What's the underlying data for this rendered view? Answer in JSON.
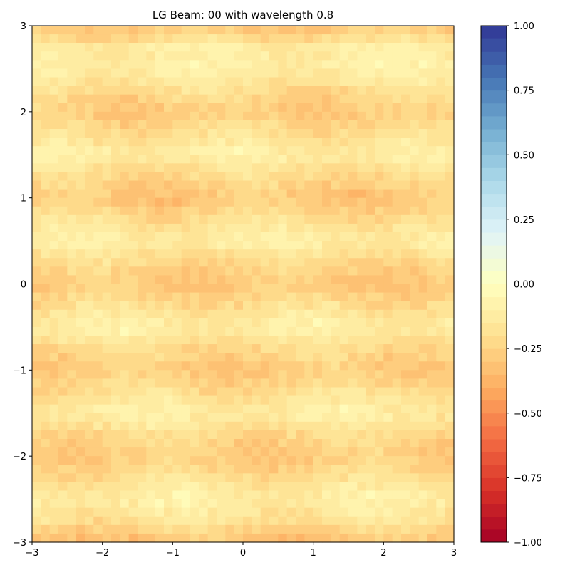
{
  "chart_data": {
    "type": "heatmap",
    "title": "LG Beam: 00 with wavelength 0.8",
    "xlabel": "",
    "ylabel": "",
    "xlim": [
      -3,
      3
    ],
    "ylim": [
      -3,
      3
    ],
    "x_ticks": [
      "−3",
      "−2",
      "−1",
      "0",
      "1",
      "2",
      "3"
    ],
    "y_ticks": [
      "−3",
      "−2",
      "−1",
      "0",
      "1",
      "2",
      "3"
    ],
    "colormap": "RdYlBu",
    "colorbar": {
      "range": [
        -1,
        1
      ],
      "levels": 40,
      "ticks": [
        "−1.00",
        "−0.75",
        "−0.50",
        "−0.25",
        "0.00",
        "0.25",
        "0.50",
        "0.75",
        "1.00"
      ]
    },
    "grid": {
      "nx": 48,
      "ny": 60,
      "value_range": [
        -0.45,
        -0.02
      ],
      "description": "horizontal bands alternating between about -0.3 (orange) and -0.1 (pale yellow) along y, with pixel-level noise"
    },
    "band_profile_y": [
      -3.0,
      -2.9,
      -2.75,
      -2.5,
      -2.25,
      -2.0,
      -1.75,
      -1.5,
      -1.25,
      -1.0,
      -0.75,
      -0.5,
      -0.25,
      0.0,
      0.25,
      0.5,
      0.75,
      1.0,
      1.25,
      1.5,
      1.75,
      2.0,
      2.25,
      2.5,
      2.75,
      2.9,
      3.0
    ],
    "band_profile_v": [
      -0.3,
      -0.28,
      -0.18,
      -0.1,
      -0.2,
      -0.28,
      -0.22,
      -0.1,
      -0.2,
      -0.28,
      -0.22,
      -0.1,
      -0.2,
      -0.3,
      -0.22,
      -0.1,
      -0.2,
      -0.3,
      -0.22,
      -0.1,
      -0.2,
      -0.28,
      -0.2,
      -0.1,
      -0.12,
      -0.25,
      -0.3
    ]
  }
}
